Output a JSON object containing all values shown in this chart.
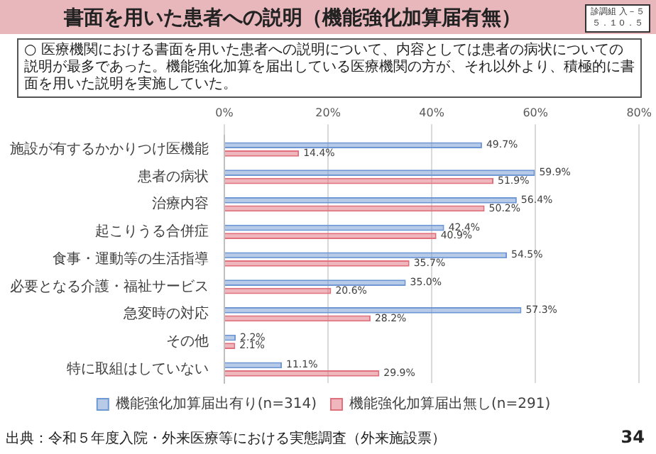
{
  "chart_data": {
    "type": "bar",
    "orientation": "horizontal",
    "title": "書面を用いた患者への説明（機能強化加算届有無）",
    "categories": [
      "施設が有するかかりつけ医機能",
      "患者の病状",
      "治療内容",
      "起こりうる合併症",
      "食事・運動等の生活指導",
      "必要となる介護・福祉サービス",
      "急変時の対応",
      "その他",
      "特に取組はしていない"
    ],
    "series": [
      {
        "name": "機能強化加算届出有り(n=314)",
        "color": "#6f97d4",
        "values": [
          49.7,
          59.9,
          56.4,
          42.4,
          54.5,
          35.0,
          57.3,
          2.2,
          11.1
        ],
        "value_labels": [
          "49.7%",
          "59.9%",
          "56.4%",
          "42.4%",
          "54.5%",
          "35.0%",
          "57.3%",
          "2.2%",
          "11.1%"
        ]
      },
      {
        "name": "機能強化加算届出無し(n=291)",
        "color": "#e0707c",
        "values": [
          14.4,
          51.9,
          50.2,
          40.9,
          35.7,
          20.6,
          28.2,
          2.1,
          29.9
        ],
        "value_labels": [
          "14.4%",
          "51.9%",
          "50.2%",
          "40.9%",
          "35.7%",
          "20.6%",
          "28.2%",
          "2.1%",
          "29.9%"
        ]
      }
    ],
    "xlim": [
      0,
      80
    ],
    "xticks": [
      {
        "value": 0,
        "label": "0%"
      },
      {
        "value": 20,
        "label": "20%"
      },
      {
        "value": 40,
        "label": "40%"
      },
      {
        "value": 60,
        "label": "60%"
      },
      {
        "value": 80,
        "label": "80%"
      }
    ],
    "grid": "x",
    "legend": "bottom",
    "annotations": [
      "診調組 入－５",
      "５．１０．５",
      "○ 医療機関における書面を用いた患者への説明について、内容としては患者の病状についての説明が最多であった。機能強化加算を届出している医療機関の方が、それ以外より、積極的に書面を用いた説明を実施していた。",
      "出典：令和５年度入院・外来医療等における実態調査（外来施設票）",
      "34"
    ]
  }
}
